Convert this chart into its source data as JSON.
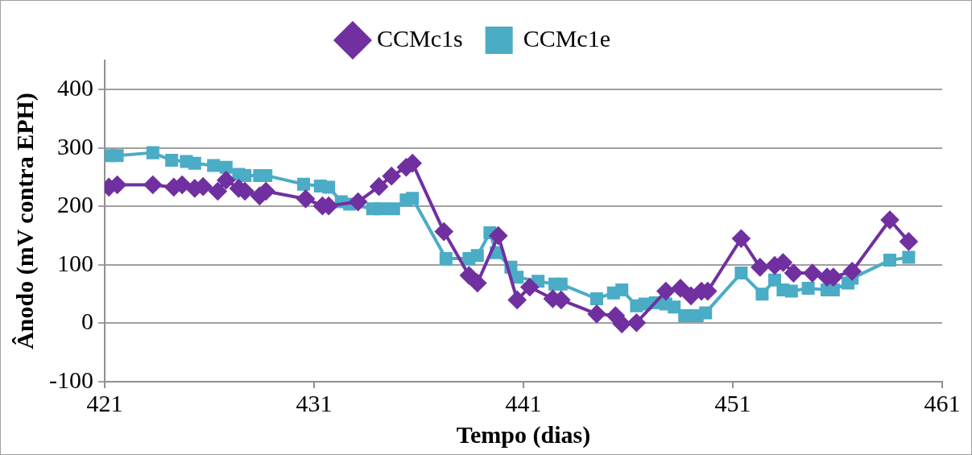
{
  "chart_data": {
    "type": "line",
    "xlabel": "Tempo (dias)",
    "ylabel": "Ânodo (mV contra EPH)",
    "xlim": [
      421,
      461
    ],
    "xticks": [
      421,
      431,
      441,
      451,
      461
    ],
    "ylim": [
      -100,
      450
    ],
    "yticks": [
      -100,
      0,
      100,
      200,
      300,
      400
    ],
    "grid": "y",
    "legend": "top",
    "line_style": "solid",
    "series": [
      {
        "name": "CCMc1s",
        "color": "#7030a0",
        "marker": "diamond",
        "x": [
          421.2,
          421.6,
          423.3,
          424.3,
          424.7,
          425.3,
          425.7,
          426.4,
          426.8,
          427.4,
          427.7,
          428.4,
          428.7,
          430.6,
          431.4,
          431.7,
          433.1,
          434.1,
          434.7,
          435.4,
          435.7,
          437.2,
          438.4,
          438.8,
          439.8,
          440.7,
          441.3,
          442.4,
          442.8,
          444.5,
          445.4,
          445.7,
          446.4,
          447.8,
          448.5,
          449.0,
          449.5,
          449.8,
          451.4,
          452.3,
          453.0,
          453.4,
          453.9,
          454.8,
          455.5,
          455.8,
          456.7,
          458.5,
          459.4
        ],
        "values": [
          233,
          237,
          237,
          233,
          237,
          231,
          234,
          226,
          245,
          231,
          226,
          218,
          226,
          213,
          201,
          201,
          208,
          234,
          252,
          267,
          274,
          157,
          82,
          69,
          150,
          40,
          62,
          42,
          40,
          16,
          13,
          -1,
          1,
          55,
          60,
          47,
          55,
          55,
          145,
          96,
          99,
          104,
          86,
          86,
          79,
          79,
          89,
          177,
          140
        ]
      },
      {
        "name": "CCMc1e",
        "color": "#4bacc6",
        "marker": "square",
        "x": [
          421.2,
          421.6,
          423.3,
          424.2,
          424.9,
          425.3,
          426.2,
          426.8,
          427.4,
          427.7,
          428.4,
          428.7,
          430.5,
          431.3,
          431.7,
          432.3,
          432.7,
          433.8,
          434.2,
          434.8,
          435.4,
          435.7,
          437.3,
          438.4,
          438.8,
          439.4,
          439.7,
          440.4,
          440.7,
          441.7,
          442.5,
          442.8,
          444.5,
          445.3,
          445.7,
          446.4,
          446.8,
          447.3,
          447.8,
          448.2,
          448.7,
          449.3,
          449.7,
          451.4,
          452.4,
          453.0,
          453.4,
          453.8,
          454.6,
          455.5,
          455.8,
          456.5,
          456.7,
          458.5,
          459.4
        ],
        "values": [
          287,
          287,
          292,
          279,
          277,
          274,
          270,
          267,
          255,
          253,
          253,
          253,
          238,
          235,
          233,
          208,
          204,
          196,
          196,
          196,
          211,
          214,
          111,
          111,
          116,
          155,
          121,
          96,
          79,
          72,
          67,
          67,
          42,
          52,
          57,
          30,
          33,
          35,
          33,
          28,
          13,
          13,
          18,
          86,
          50,
          74,
          57,
          55,
          60,
          57,
          57,
          69,
          77,
          108,
          113
        ]
      }
    ]
  }
}
